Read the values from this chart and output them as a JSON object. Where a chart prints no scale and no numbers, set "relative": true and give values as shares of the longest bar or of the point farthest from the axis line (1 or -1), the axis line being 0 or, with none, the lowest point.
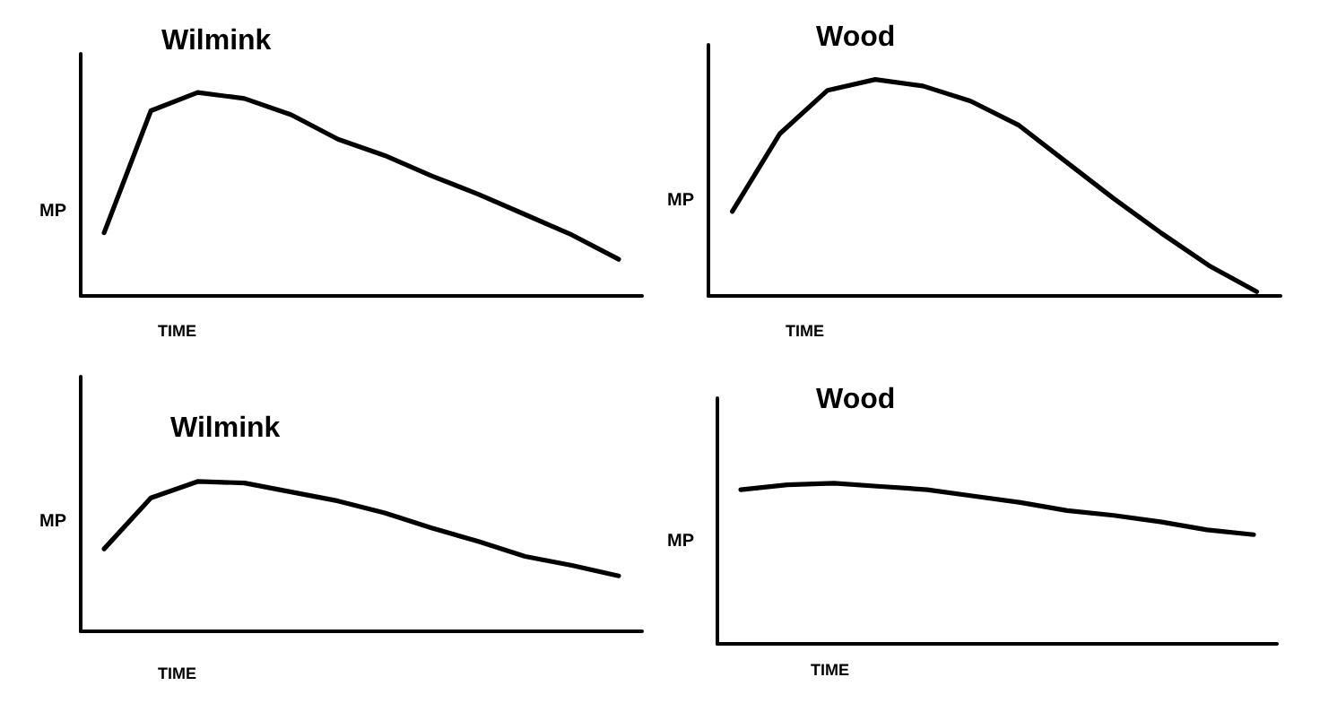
{
  "chart_data": [
    {
      "type": "line",
      "title": "Wilmink",
      "xlabel": "TIME",
      "ylabel": "MP",
      "relative": true,
      "marker": "none",
      "line_style": "solid",
      "categories": [
        null,
        null,
        null,
        null,
        null,
        null,
        null,
        null,
        null,
        null,
        null,
        null
      ],
      "series": [
        {
          "color": "#000000",
          "values": [
            0.31,
            0.91,
            1,
            0.97,
            0.89,
            0.77,
            0.69,
            0.59,
            0.5,
            0.4,
            0.3,
            0.18
          ]
        }
      ]
    },
    {
      "type": "line",
      "title": "Wood",
      "xlabel": "TIME",
      "ylabel": "MP",
      "relative": true,
      "marker": "none",
      "line_style": "solid",
      "categories": [
        null,
        null,
        null,
        null,
        null,
        null,
        null,
        null,
        null,
        null,
        null,
        null
      ],
      "series": [
        {
          "color": "#000000",
          "values": [
            0.39,
            0.75,
            0.95,
            1,
            0.97,
            0.9,
            0.79,
            0.62,
            0.45,
            0.29,
            0.14,
            0.02
          ]
        }
      ]
    },
    {
      "type": "line",
      "title": "Wilmink",
      "xlabel": "TIME",
      "ylabel": "MP",
      "relative": true,
      "marker": "none",
      "line_style": "solid",
      "categories": [
        null,
        null,
        null,
        null,
        null,
        null,
        null,
        null,
        null,
        null,
        null,
        null
      ],
      "series": [
        {
          "color": "#000000",
          "values": [
            0.55,
            0.89,
            1,
            0.99,
            0.93,
            0.87,
            0.79,
            0.69,
            0.6,
            0.5,
            0.44,
            0.37
          ]
        }
      ]
    },
    {
      "type": "line",
      "title": "Wood",
      "xlabel": "TIME",
      "ylabel": "MP",
      "relative": true,
      "marker": "none",
      "line_style": "solid",
      "categories": [
        null,
        null,
        null,
        null,
        null,
        null,
        null,
        null,
        null,
        null,
        null,
        null
      ],
      "series": [
        {
          "color": "#000000",
          "values": [
            0.96,
            0.99,
            1,
            0.98,
            0.96,
            0.92,
            0.88,
            0.83,
            0.8,
            0.76,
            0.71,
            0.68
          ]
        }
      ]
    }
  ]
}
